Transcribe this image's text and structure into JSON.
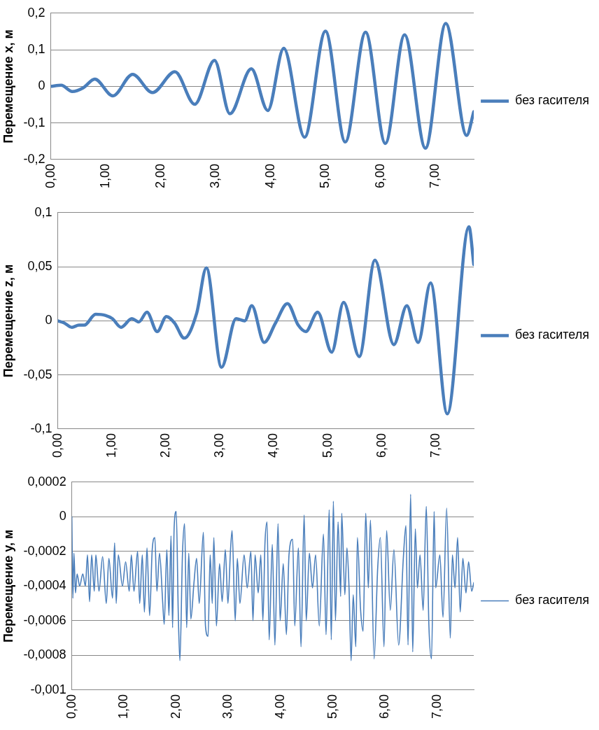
{
  "chart_data": [
    {
      "type": "line",
      "ylabel": "Перемещение x, м",
      "legend": "right",
      "grid": "y",
      "marker": "none",
      "line_style": "solid",
      "xlim": [
        0,
        7.7
      ],
      "xticks": [
        {
          "value": 0,
          "label": "0,00"
        },
        {
          "value": 1,
          "label": "1,00"
        },
        {
          "value": 2,
          "label": "2,00"
        },
        {
          "value": 3,
          "label": "3,00"
        },
        {
          "value": 4,
          "label": "4,00"
        },
        {
          "value": 5,
          "label": "5,00"
        },
        {
          "value": 6,
          "label": "6,00"
        },
        {
          "value": 7,
          "label": "7,00"
        }
      ],
      "ylim": [
        -0.2,
        0.2
      ],
      "yticks": [
        {
          "value": -0.2,
          "label": "-0,2"
        },
        {
          "value": -0.1,
          "label": "-0,1"
        },
        {
          "value": 0,
          "label": "0"
        },
        {
          "value": 0.1,
          "label": "0,1"
        },
        {
          "value": 0.2,
          "label": "0,2"
        }
      ],
      "x": [
        0,
        0.19,
        0.39,
        0.59,
        0.8,
        1.13,
        1.49,
        1.85,
        2.26,
        2.62,
        2.98,
        3.26,
        3.65,
        3.95,
        4.24,
        4.62,
        5.0,
        5.36,
        5.73,
        6.09,
        6.44,
        6.82,
        7.19,
        7.57,
        7.7
      ],
      "series": [
        {
          "name": "без гасителя",
          "color": "#4a7ebb",
          "values": [
            0,
            0.003,
            -0.014,
            -0.004,
            0.02,
            -0.026,
            0.033,
            -0.017,
            0.04,
            -0.049,
            0.071,
            -0.075,
            0.048,
            -0.066,
            0.104,
            -0.139,
            0.151,
            -0.152,
            0.148,
            -0.156,
            0.141,
            -0.169,
            0.172,
            -0.134,
            -0.069
          ]
        }
      ]
    },
    {
      "type": "line",
      "ylabel": "Перемещение z, м",
      "legend": "right",
      "grid": "y",
      "marker": "none",
      "line_style": "solid",
      "xlim": [
        0,
        7.7
      ],
      "xticks": [
        {
          "value": 0,
          "label": "0,00"
        },
        {
          "value": 1,
          "label": "1,00"
        },
        {
          "value": 2,
          "label": "2,00"
        },
        {
          "value": 3,
          "label": "3,00"
        },
        {
          "value": 4,
          "label": "4,00"
        },
        {
          "value": 5,
          "label": "5,00"
        },
        {
          "value": 6,
          "label": "6,00"
        },
        {
          "value": 7,
          "label": "7,00"
        }
      ],
      "ylim": [
        -0.1,
        0.1
      ],
      "yticks": [
        {
          "value": -0.1,
          "label": "-0,1"
        },
        {
          "value": -0.05,
          "label": "-0,05"
        },
        {
          "value": 0,
          "label": "0"
        },
        {
          "value": 0.05,
          "label": "0,05"
        },
        {
          "value": 0.1,
          "label": "0,1"
        }
      ],
      "x": [
        0,
        0.12,
        0.26,
        0.39,
        0.49,
        0.7,
        0.88,
        1.01,
        1.17,
        1.37,
        1.5,
        1.65,
        1.84,
        2.01,
        2.16,
        2.34,
        2.57,
        2.75,
        3.03,
        3.3,
        3.46,
        3.59,
        3.82,
        4.03,
        4.25,
        4.45,
        4.59,
        4.81,
        5.07,
        5.29,
        5.58,
        5.87,
        6.22,
        6.46,
        6.67,
        6.9,
        7.21,
        7.61,
        7.7
      ],
      "series": [
        {
          "name": "без гасителя",
          "color": "#4a7ebb",
          "values": [
            0,
            -0.002,
            -0.006,
            -0.004,
            -0.004,
            0.006,
            0.005,
            0.002,
            -0.006,
            0.002,
            -0.001,
            0.008,
            -0.01,
            0.004,
            -0.002,
            -0.016,
            0.007,
            0.049,
            -0.043,
            0.002,
            0,
            0.014,
            -0.02,
            -0.002,
            0.016,
            -0.004,
            -0.01,
            0.008,
            -0.029,
            0.017,
            -0.033,
            0.056,
            -0.022,
            0.014,
            -0.02,
            0.035,
            -0.086,
            0.087,
            0.052
          ]
        }
      ]
    },
    {
      "type": "line",
      "ylabel": "Перемещение y, м",
      "legend": "right",
      "grid": "y",
      "marker": "none",
      "line_style": "solid",
      "xlim": [
        0,
        7.7
      ],
      "xticks": [
        {
          "value": 0,
          "label": "0,00"
        },
        {
          "value": 1,
          "label": "1,00"
        },
        {
          "value": 2,
          "label": "2,00"
        },
        {
          "value": 3,
          "label": "3,00"
        },
        {
          "value": 4,
          "label": "4,00"
        },
        {
          "value": 5,
          "label": "5,00"
        },
        {
          "value": 6,
          "label": "6,00"
        },
        {
          "value": 7,
          "label": "7,00"
        }
      ],
      "ylim": [
        -0.001,
        0.0002
      ],
      "yticks": [
        {
          "value": -0.001,
          "label": "-0,001"
        },
        {
          "value": -0.0008,
          "label": "-0,0008"
        },
        {
          "value": -0.0006,
          "label": "-0,0006"
        },
        {
          "value": -0.0004,
          "label": "-0,0004"
        },
        {
          "value": -0.0002,
          "label": "-0,0002"
        },
        {
          "value": 0,
          "label": "0"
        },
        {
          "value": 0.0002,
          "label": "0,0002"
        }
      ],
      "x": [
        0,
        0.02,
        0.04,
        0.07,
        0.1,
        0.15,
        0.21,
        0.26,
        0.3,
        0.34,
        0.38,
        0.43,
        0.46,
        0.52,
        0.59,
        0.66,
        0.71,
        0.78,
        0.82,
        0.85,
        0.89,
        0.97,
        1.03,
        1.1,
        1.14,
        1.19,
        1.26,
        1.3,
        1.35,
        1.39,
        1.44,
        1.49,
        1.54,
        1.59,
        1.63,
        1.68,
        1.74,
        1.77,
        1.82,
        1.86,
        1.9,
        1.93,
        1.96,
        2.0,
        2.04,
        2.07,
        2.12,
        2.16,
        2.2,
        2.24,
        2.28,
        2.34,
        2.39,
        2.44,
        2.52,
        2.56,
        2.61,
        2.65,
        2.69,
        2.72,
        2.77,
        2.83,
        2.88,
        2.94,
        2.99,
        3.04,
        3.07,
        3.13,
        3.17,
        3.22,
        3.3,
        3.36,
        3.43,
        3.47,
        3.51,
        3.57,
        3.62,
        3.66,
        3.7,
        3.74,
        3.78,
        3.84,
        3.89,
        3.95,
        3.99,
        4.05,
        4.11,
        4.16,
        4.23,
        4.27,
        4.34,
        4.39,
        4.45,
        4.49,
        4.55,
        4.61,
        4.67,
        4.74,
        4.82,
        4.87,
        4.93,
        4.97,
        5.01,
        5.05,
        5.1,
        5.15,
        5.17,
        5.23,
        5.27,
        5.31,
        5.35,
        5.39,
        5.44,
        5.47,
        5.53,
        5.58,
        5.63,
        5.68,
        5.72,
        5.79,
        5.86,
        5.91,
        5.98,
        6.03,
        6.1,
        6.17,
        6.26,
        6.35,
        6.4,
        6.44,
        6.49,
        6.53,
        6.58,
        6.62,
        6.67,
        6.73,
        6.79,
        6.84,
        6.89,
        6.94,
        6.97,
        7.05,
        7.11,
        7.18,
        7.25,
        7.29,
        7.34,
        7.39,
        7.44,
        7.49,
        7.55,
        7.6,
        7.66,
        7.7
      ],
      "series": [
        {
          "name": "без гасителя",
          "color": "#4a7ebb",
          "values": [
            0,
            -0.00047,
            -0.00021,
            -0.00044,
            -0.00033,
            -0.0004,
            -0.00033,
            -0.0004,
            -0.00022,
            -0.00049,
            -0.00022,
            -0.00043,
            -0.00022,
            -0.00043,
            -0.00023,
            -0.0005,
            -0.00024,
            -0.00047,
            -0.00015,
            -0.0005,
            -0.00022,
            -0.0004,
            -0.00026,
            -0.00043,
            -0.00022,
            -0.00043,
            -0.0002,
            -0.0005,
            -0.00022,
            -0.00055,
            -0.00018,
            -0.00057,
            -0.00019,
            -0.00012,
            -0.00043,
            -0.00021,
            -0.00049,
            -0.00062,
            -0.00019,
            -0.00057,
            -0.00011,
            -0.00064,
            -6e-05,
            3e-05,
            -0.00057,
            -0.00083,
            -0.00021,
            -4e-05,
            -0.00064,
            -0.00021,
            -0.00059,
            -0.00038,
            -0.00024,
            -0.0005,
            -9e-05,
            -0.00063,
            -0.00069,
            -0.00022,
            -0.0005,
            -0.00012,
            -0.00063,
            -0.00027,
            -0.00049,
            -0.00019,
            -0.0005,
            -0.00019,
            -8e-05,
            -0.0006,
            -0.00024,
            -0.0005,
            -0.00022,
            -0.00041,
            -0.0002,
            -0.0006,
            -0.00022,
            -0.00044,
            -0.00022,
            -0.0006,
            -0.00015,
            -3e-05,
            -0.00071,
            -0.00016,
            -0.00074,
            -4e-05,
            -0.0006,
            -0.00027,
            -0.00068,
            -0.00022,
            -0.00013,
            -0.00063,
            -0.00018,
            -0.00075,
            1e-05,
            -0.0006,
            -0.00021,
            -0.00041,
            -0.00022,
            -0.00063,
            -0.0001,
            -0.00068,
            4e-05,
            -0.00071,
            9e-05,
            -0.0006,
            -3e-05,
            -0.00046,
            2e-05,
            -0.00045,
            -0.00018,
            -0.00041,
            -0.00083,
            -0.00045,
            -0.00075,
            -0.00012,
            -0.00053,
            -0.00066,
            2e-05,
            -0.00041,
            -2e-05,
            -0.00082,
            -0.00029,
            -0.00012,
            -0.00075,
            -8e-05,
            -0.00054,
            -0.00019,
            -0.00074,
            -0.00024,
            -5e-05,
            -0.00074,
            0.00013,
            -0.00078,
            -7e-05,
            -0.00041,
            -0.00022,
            -0.00054,
            6e-05,
            -0.00063,
            -0.00082,
            3e-05,
            -0.00041,
            -0.00022,
            -0.00058,
            5e-05,
            -0.0007,
            -0.00022,
            -0.00041,
            -0.00012,
            -0.00055,
            -0.00024,
            -0.00044,
            -0.00026,
            -0.00043,
            -0.00038
          ]
        }
      ]
    }
  ]
}
